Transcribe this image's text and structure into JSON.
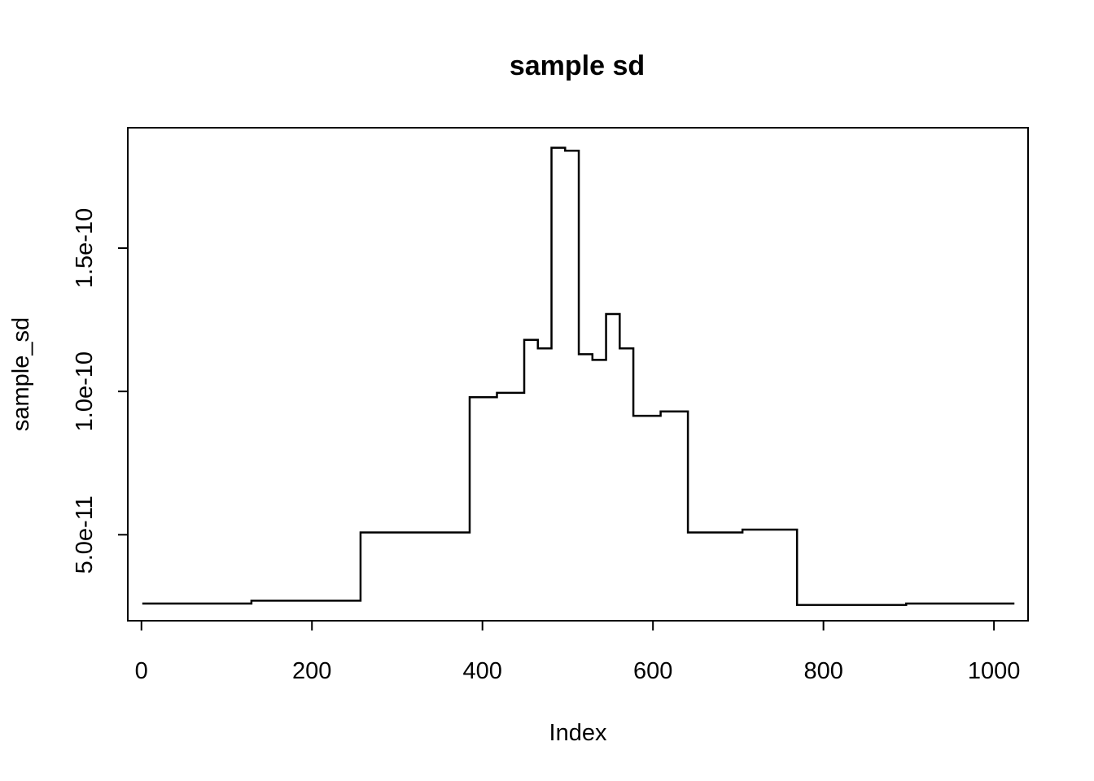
{
  "chart_data": {
    "type": "line",
    "title": "sample sd",
    "xlabel": "Index",
    "ylabel": "sample_sd",
    "xlim": [
      -16,
      1040
    ],
    "ylim": [
      2e-11,
      1.92e-10
    ],
    "x_ticks": [
      0,
      200,
      400,
      600,
      800,
      1000
    ],
    "x_tick_labels": [
      "0",
      "200",
      "400",
      "600",
      "800",
      "1000"
    ],
    "y_ticks": [
      5e-11,
      1e-10,
      1.5e-10
    ],
    "y_tick_labels": [
      "5.0e-11",
      "1.0e-10",
      "1.5e-10"
    ],
    "grid": false,
    "line_style": "step",
    "series": [
      {
        "x": [
          1,
          128,
          129,
          256,
          257,
          384,
          385,
          416,
          417,
          448,
          449,
          464,
          465,
          480,
          481,
          496,
          497,
          512,
          513,
          528,
          529,
          544,
          545,
          560,
          561,
          576,
          577,
          608,
          609,
          640,
          641,
          704,
          705,
          768,
          769,
          896,
          897,
          1024
        ],
        "y": [
          2.6e-11,
          2.6e-11,
          2.7e-11,
          2.7e-11,
          5.08e-11,
          5.08e-11,
          9.8e-11,
          9.8e-11,
          9.95e-11,
          9.95e-11,
          1.18e-10,
          1.18e-10,
          1.15e-10,
          1.15e-10,
          1.85e-10,
          1.85e-10,
          1.84e-10,
          1.84e-10,
          1.13e-10,
          1.13e-10,
          1.11e-10,
          1.11e-10,
          1.27e-10,
          1.27e-10,
          1.15e-10,
          1.15e-10,
          9.15e-11,
          9.15e-11,
          9.3e-11,
          9.3e-11,
          5.08e-11,
          5.08e-11,
          5.18e-11,
          5.18e-11,
          2.55e-11,
          2.55e-11,
          2.6e-11,
          2.6e-11
        ]
      }
    ]
  }
}
